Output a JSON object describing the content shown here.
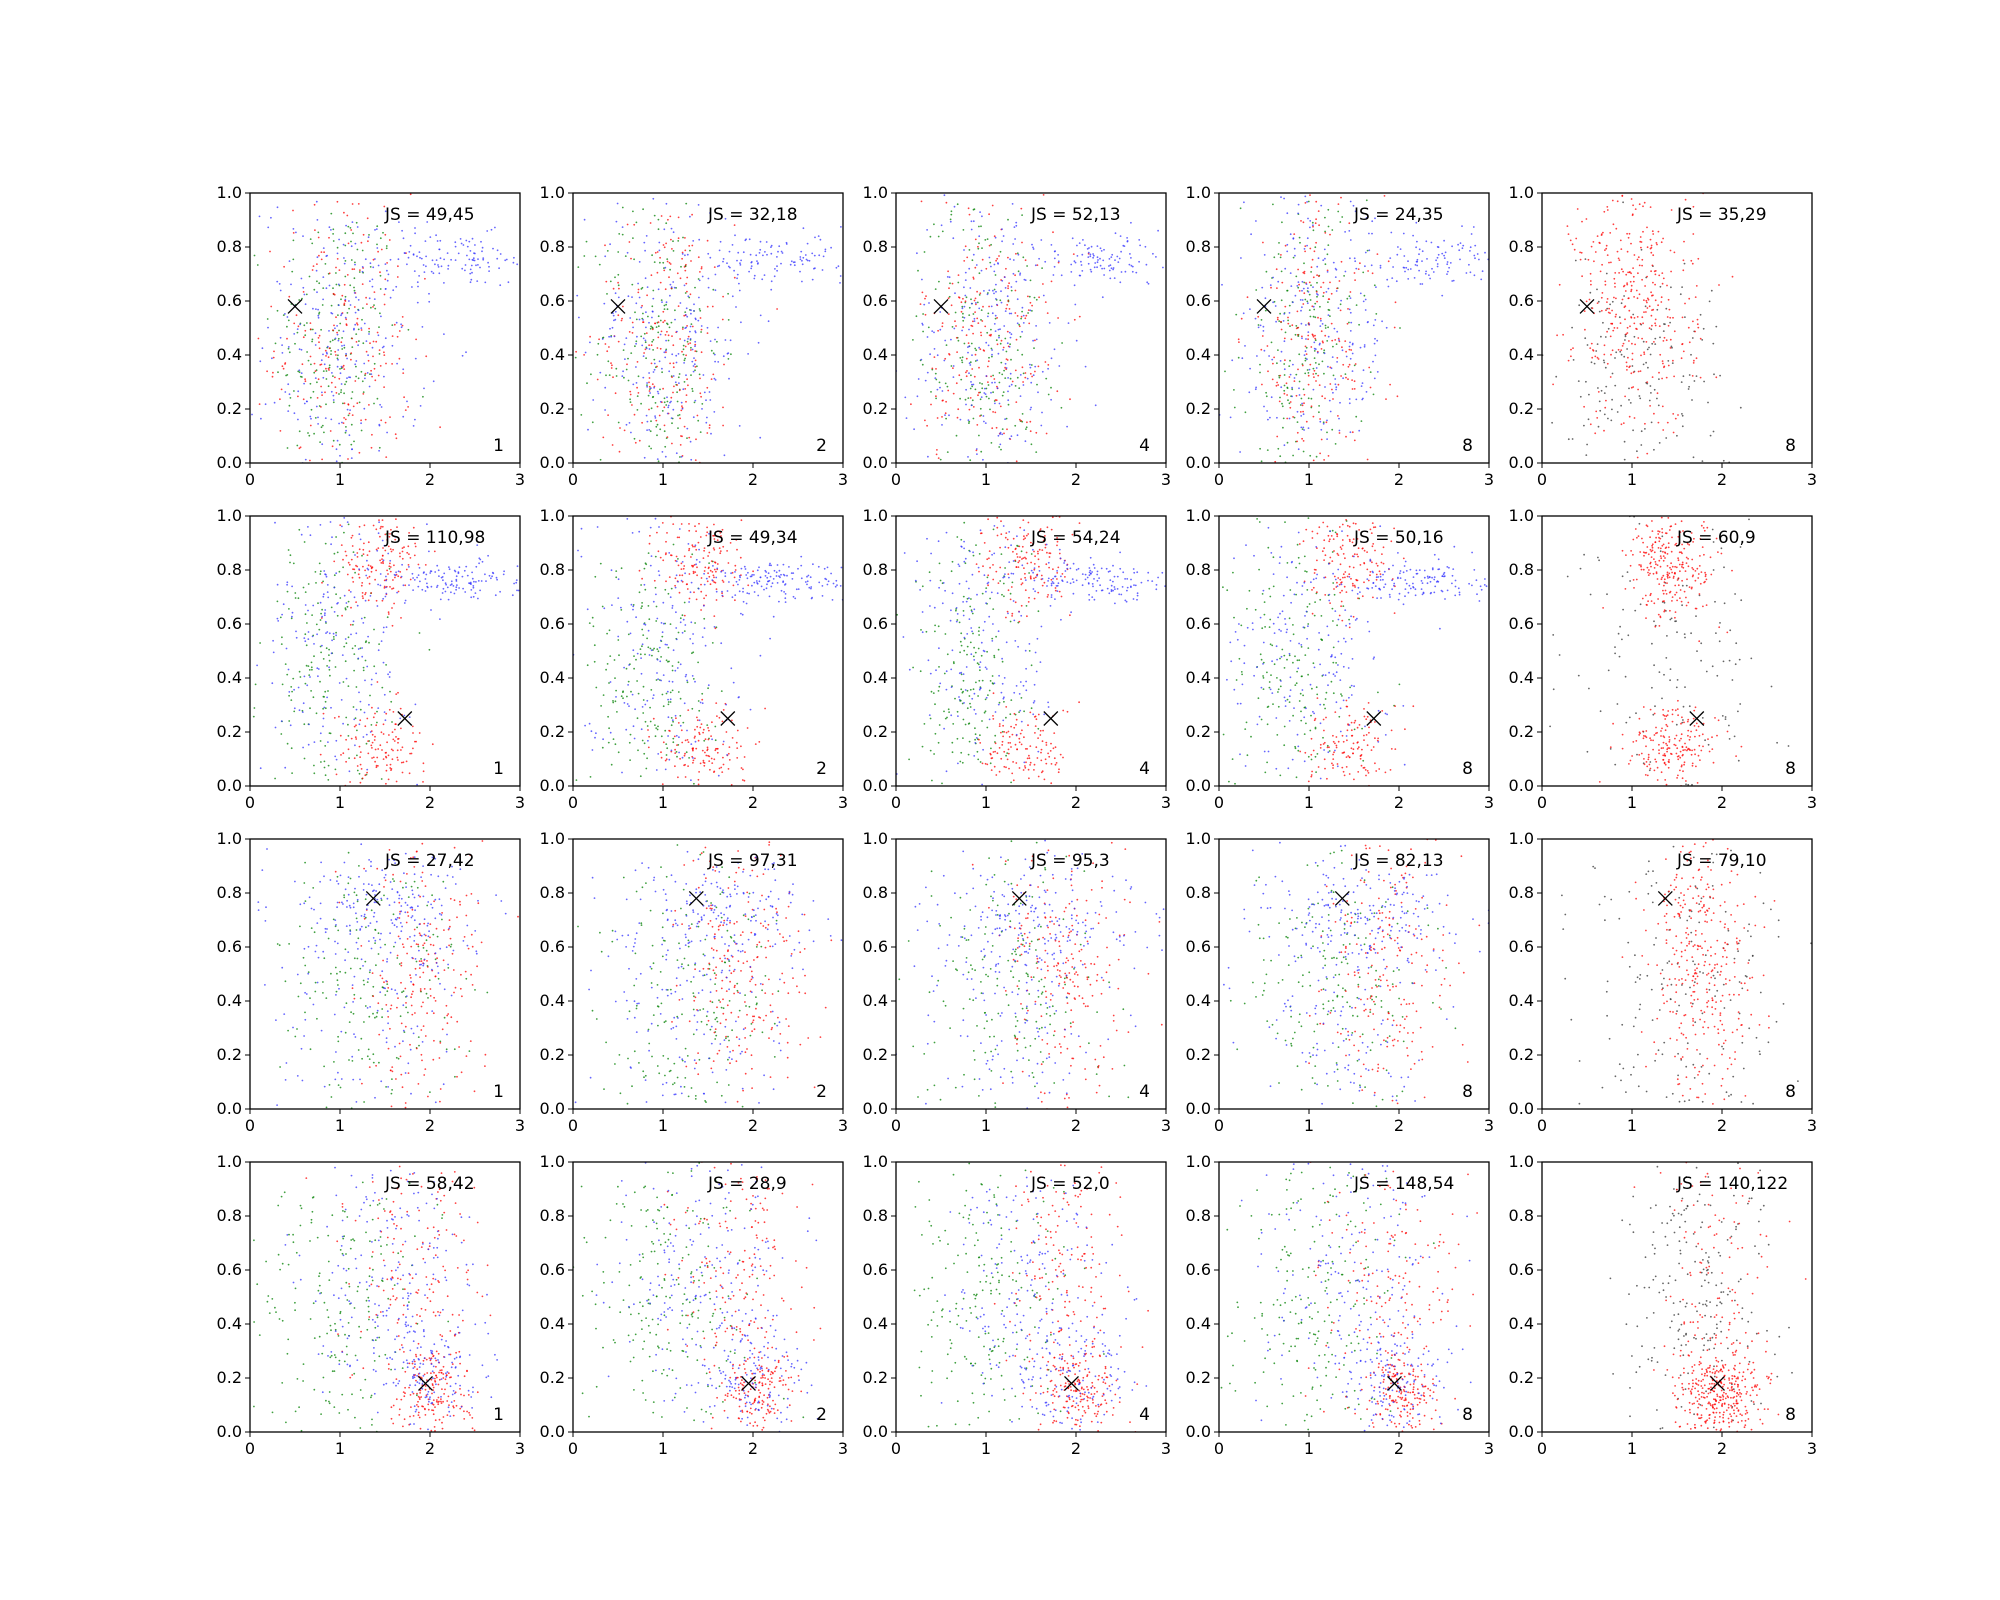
{
  "chart_data": {
    "type": "scatter",
    "layout": {
      "rows": 4,
      "cols": 5
    },
    "xlim": [
      0,
      3
    ],
    "ylim": [
      0,
      1
    ],
    "xticks": [
      "0",
      "1",
      "2",
      "3"
    ],
    "yticks": [
      "0.0",
      "0.2",
      "0.4",
      "0.6",
      "0.8",
      "1.0"
    ],
    "colors": {
      "blue": "#3333ff",
      "green": "#008000",
      "red": "#ff0000",
      "black": "#333333",
      "marker": "#000000"
    },
    "rows": [
      {
        "marker": {
          "x": 0.5,
          "y": 0.58
        },
        "panels": [
          {
            "js": "JS = 49,45",
            "corner": "1",
            "style": "mixed",
            "regime": "r1"
          },
          {
            "js": "JS = 32,18",
            "corner": "2",
            "style": "mixed",
            "regime": "r1"
          },
          {
            "js": "JS = 52,13",
            "corner": "4",
            "style": "mixed",
            "regime": "r1"
          },
          {
            "js": "JS = 24,35",
            "corner": "8",
            "style": "mixed",
            "regime": "r1"
          },
          {
            "js": "JS = 35,29",
            "corner": "8",
            "style": "redblack",
            "regime": "r1"
          }
        ]
      },
      {
        "marker": {
          "x": 1.72,
          "y": 0.25
        },
        "panels": [
          {
            "js": "JS = 110,98",
            "corner": "1",
            "style": "mixed",
            "regime": "r2"
          },
          {
            "js": "JS = 49,34",
            "corner": "2",
            "style": "mixed",
            "regime": "r2"
          },
          {
            "js": "JS = 54,24",
            "corner": "4",
            "style": "mixed",
            "regime": "r2"
          },
          {
            "js": "JS = 50,16",
            "corner": "8",
            "style": "mixed",
            "regime": "r2"
          },
          {
            "js": "JS = 60,9",
            "corner": "8",
            "style": "redblack",
            "regime": "r2"
          }
        ]
      },
      {
        "marker": {
          "x": 1.37,
          "y": 0.78
        },
        "panels": [
          {
            "js": "JS = 27,42",
            "corner": "1",
            "style": "mixed",
            "regime": "r3"
          },
          {
            "js": "JS = 97,31",
            "corner": "2",
            "style": "mixed",
            "regime": "r3"
          },
          {
            "js": "JS = 95,3",
            "corner": "4",
            "style": "mixed",
            "regime": "r3"
          },
          {
            "js": "JS = 82,13",
            "corner": "8",
            "style": "mixed",
            "regime": "r3"
          },
          {
            "js": "JS = 79,10",
            "corner": "8",
            "style": "redblack",
            "regime": "r3"
          }
        ]
      },
      {
        "marker": {
          "x": 1.95,
          "y": 0.18
        },
        "panels": [
          {
            "js": "JS = 58,42",
            "corner": "1",
            "style": "mixed",
            "regime": "r4"
          },
          {
            "js": "JS = 28,9",
            "corner": "2",
            "style": "mixed",
            "regime": "r4"
          },
          {
            "js": "JS = 52,0",
            "corner": "4",
            "style": "mixed",
            "regime": "r4"
          },
          {
            "js": "JS = 148,54",
            "corner": "8",
            "style": "mixed",
            "regime": "r4"
          },
          {
            "js": "JS = 140,122",
            "corner": "8",
            "style": "redblack",
            "regime": "r4"
          }
        ]
      }
    ]
  }
}
